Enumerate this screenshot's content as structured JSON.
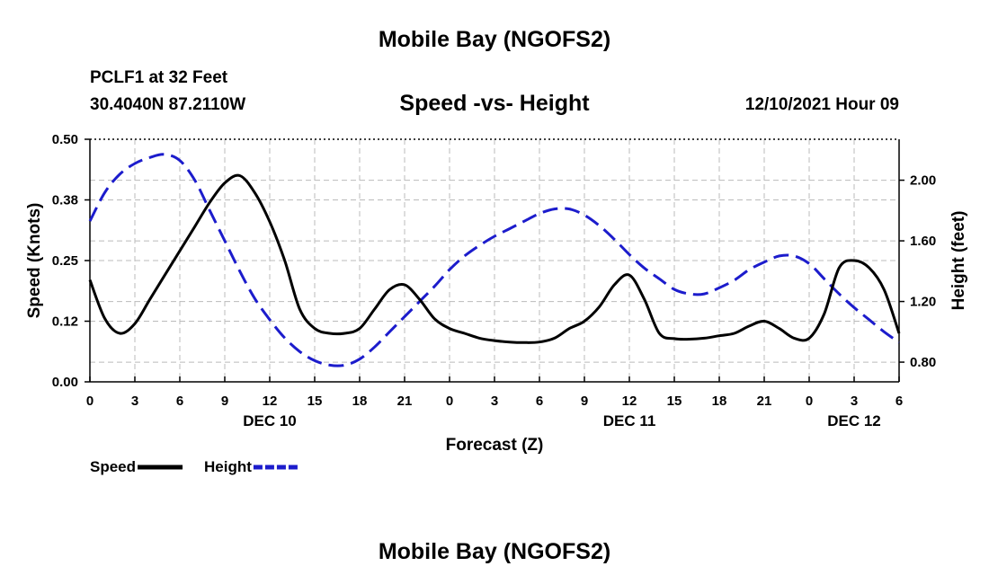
{
  "header": {
    "title": "Mobile Bay (NGOFS2)",
    "station": "PCLF1 at 32 Feet",
    "coordinates": "30.4040N  87.2110W",
    "datetime": "12/10/2021 Hour 09"
  },
  "footer": {
    "title": "Mobile Bay (NGOFS2)"
  },
  "chart_data": {
    "type": "line",
    "title": "Speed -vs- Height",
    "xlabel": "Forecast (Z)",
    "ylabel_left": "Speed (Knots)",
    "ylabel_right": "Height (feet)",
    "xlim": [
      0,
      54
    ],
    "ylim_left": [
      0,
      0.5
    ],
    "ylim_right": [
      0.67,
      2.27
    ],
    "x_ticks": [
      0,
      3,
      6,
      9,
      12,
      15,
      18,
      21,
      24,
      27,
      30,
      33,
      36,
      39,
      42,
      45,
      48,
      51,
      54
    ],
    "x_tick_labels": [
      "0",
      "3",
      "6",
      "9",
      "12",
      "15",
      "18",
      "21",
      "0",
      "3",
      "6",
      "9",
      "12",
      "15",
      "18",
      "21",
      "0",
      "3",
      "6"
    ],
    "day_labels": [
      {
        "x": 12,
        "label": "DEC 10"
      },
      {
        "x": 36,
        "label": "DEC 11"
      },
      {
        "x": 51,
        "label": "DEC 12"
      }
    ],
    "y_ticks_left": [
      0.0,
      0.125,
      0.25,
      0.375,
      0.5
    ],
    "y_tick_labels_left": [
      "0.00",
      "0.12",
      "0.25",
      "0.38",
      "0.50"
    ],
    "y_ticks_right": [
      0.8,
      1.2,
      1.6,
      2.0
    ],
    "y_tick_labels_right": [
      "0.80",
      "1.20",
      "1.60",
      "2.00"
    ],
    "grid": true,
    "legend": "bottom-left",
    "series": [
      {
        "name": "Speed",
        "axis": "left",
        "color": "#000000",
        "dashed": false,
        "x": [
          0,
          1,
          2,
          3,
          4,
          5,
          6,
          7,
          8,
          9,
          10,
          11,
          12,
          13,
          14,
          15,
          16,
          17,
          18,
          19,
          20,
          21,
          22,
          23,
          24,
          25,
          26,
          27,
          28,
          29,
          30,
          31,
          32,
          33,
          34,
          35,
          36,
          37,
          38,
          39,
          40,
          41,
          42,
          43,
          44,
          45,
          46,
          47,
          48,
          49,
          50,
          51,
          52,
          53,
          54
        ],
        "values": [
          0.21,
          0.13,
          0.1,
          0.12,
          0.17,
          0.22,
          0.27,
          0.32,
          0.37,
          0.41,
          0.425,
          0.39,
          0.33,
          0.25,
          0.15,
          0.11,
          0.1,
          0.1,
          0.11,
          0.15,
          0.19,
          0.2,
          0.17,
          0.13,
          0.11,
          0.1,
          0.09,
          0.085,
          0.082,
          0.081,
          0.082,
          0.09,
          0.11,
          0.125,
          0.155,
          0.2,
          0.22,
          0.17,
          0.1,
          0.089,
          0.088,
          0.09,
          0.095,
          0.1,
          0.115,
          0.125,
          0.11,
          0.09,
          0.09,
          0.14,
          0.235,
          0.25,
          0.235,
          0.19,
          0.1
        ]
      },
      {
        "name": "Height",
        "axis": "right",
        "color": "#1c1ccc",
        "dashed": true,
        "x": [
          0,
          1,
          2,
          3,
          4,
          5,
          6,
          7,
          8,
          9,
          10,
          11,
          12,
          13,
          14,
          15,
          16,
          17,
          18,
          19,
          20,
          21,
          22,
          23,
          24,
          25,
          26,
          27,
          28,
          29,
          30,
          31,
          32,
          33,
          34,
          35,
          36,
          37,
          38,
          39,
          40,
          41,
          42,
          43,
          44,
          45,
          46,
          47,
          48,
          49,
          50,
          51,
          52,
          53,
          54
        ],
        "values": [
          1.73,
          1.92,
          2.04,
          2.11,
          2.15,
          2.17,
          2.13,
          2.0,
          1.8,
          1.6,
          1.4,
          1.22,
          1.08,
          0.96,
          0.87,
          0.81,
          0.78,
          0.78,
          0.82,
          0.9,
          1.0,
          1.1,
          1.2,
          1.3,
          1.41,
          1.5,
          1.57,
          1.63,
          1.68,
          1.73,
          1.78,
          1.81,
          1.81,
          1.77,
          1.7,
          1.61,
          1.51,
          1.42,
          1.35,
          1.28,
          1.25,
          1.25,
          1.29,
          1.34,
          1.41,
          1.46,
          1.5,
          1.5,
          1.45,
          1.35,
          1.25,
          1.16,
          1.08,
          1.0,
          0.93
        ]
      }
    ]
  }
}
